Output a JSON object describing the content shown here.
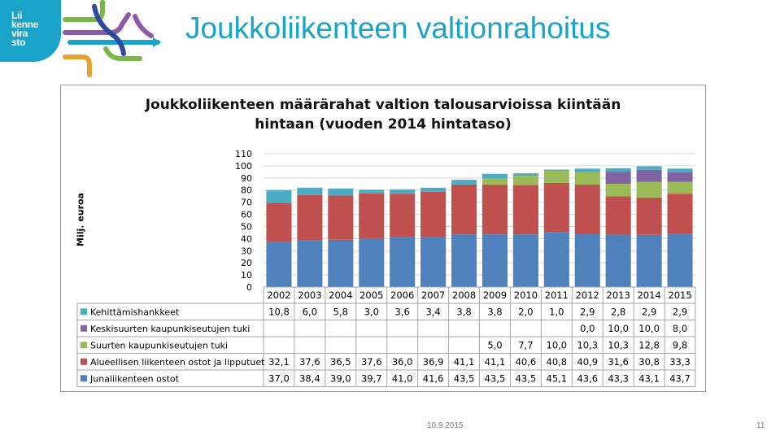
{
  "logo": {
    "lines": [
      "Lii",
      "kenne",
      "vira",
      "sto"
    ],
    "colors": [
      "#ffffff",
      "#1aa3c8",
      "#7ab648",
      "#8b5ca5",
      "#e8a32e",
      "#2c4a9e"
    ]
  },
  "slide": {
    "title": "Joukkoliikenteen valtionrahoitus",
    "date": "10.9.2015",
    "page": "11"
  },
  "chart_data": {
    "type": "bar",
    "stacked": true,
    "title_lines": [
      "Joukkoliikenteen määrärahat valtion talousarvioissa kiintään",
      "hintaan (vuoden 2014 hintataso)"
    ],
    "ylabel": "Milj. euroa",
    "ylim": [
      0,
      110
    ],
    "yticks": [
      "0",
      "10",
      "20",
      "30",
      "40",
      "50",
      "60",
      "70",
      "80",
      "90",
      "100",
      "110"
    ],
    "grid": true,
    "legend": "table-left",
    "categories": [
      "2002",
      "2003",
      "2004",
      "2005",
      "2006",
      "2007",
      "2008",
      "2009",
      "2010",
      "2011",
      "2012",
      "2013",
      "2014",
      "2015"
    ],
    "series": [
      {
        "name": "Junaliikenteen ostot",
        "color": "#4f81bd",
        "values": [
          37.0,
          38.4,
          39.0,
          39.7,
          41.0,
          41.6,
          43.5,
          43.5,
          43.5,
          45.1,
          43.6,
          43.3,
          43.1,
          43.7
        ],
        "labels": [
          "37,0",
          "38,4",
          "39,0",
          "39,7",
          "41,0",
          "41,6",
          "43,5",
          "43,5",
          "43,5",
          "45,1",
          "43,6",
          "43,3",
          "43,1",
          "43,7"
        ]
      },
      {
        "name": "Alueellisen liikenteen ostot ja lipputuet",
        "color": "#c0504d",
        "values": [
          32.1,
          37.6,
          36.5,
          37.6,
          36.0,
          36.9,
          41.1,
          41.1,
          40.6,
          40.8,
          40.9,
          31.6,
          30.8,
          33.3
        ],
        "labels": [
          "32,1",
          "37,6",
          "36,5",
          "37,6",
          "36,0",
          "36,9",
          "41,1",
          "41,1",
          "40,6",
          "40,8",
          "40,9",
          "31,6",
          "30,8",
          "33,3"
        ]
      },
      {
        "name": "Suurten kaupunkiseutujen tuki",
        "color": "#9bbb59",
        "values": [
          null,
          null,
          null,
          null,
          null,
          null,
          null,
          5.0,
          7.7,
          10.0,
          10.3,
          10.3,
          12.8,
          9.8
        ],
        "labels": [
          "",
          "",
          "",
          "",
          "",
          "",
          "",
          "5,0",
          "7,7",
          "10,0",
          "10,3",
          "10,3",
          "12,8",
          "9,8"
        ]
      },
      {
        "name": "Keskisuurten kaupunkiseutujen tuki",
        "color": "#8064a2",
        "values": [
          null,
          null,
          null,
          null,
          null,
          null,
          null,
          null,
          null,
          null,
          0.0,
          10.0,
          10.0,
          8.0
        ],
        "labels": [
          "",
          "",
          "",
          "",
          "",
          "",
          "",
          "",
          "",
          "",
          "0,0",
          "10,0",
          "10,0",
          "8,0"
        ]
      },
      {
        "name": "Kehittämishankkeet",
        "color": "#4bacc6",
        "values": [
          10.8,
          6.0,
          5.8,
          3.0,
          3.6,
          3.4,
          3.8,
          3.8,
          2.0,
          1.0,
          2.9,
          2.8,
          2.9,
          2.9
        ],
        "labels": [
          "10,8",
          "6,0",
          "5,8",
          "3,0",
          "3,6",
          "3,4",
          "3,8",
          "3,8",
          "2,0",
          "1,0",
          "2,9",
          "2,8",
          "2,9",
          "2,9"
        ]
      }
    ]
  }
}
